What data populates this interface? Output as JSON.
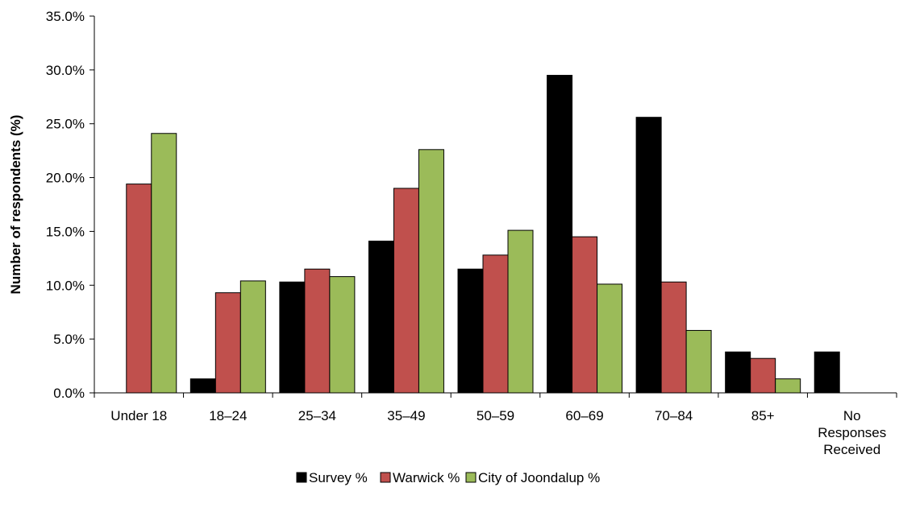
{
  "chart_data": {
    "type": "bar",
    "title": "",
    "xlabel": "",
    "ylabel": "Number of respondents (%)",
    "ylim": [
      0,
      35
    ],
    "y_tick_labels": [
      "0.0%",
      "5.0%",
      "10.0%",
      "15.0%",
      "20.0%",
      "25.0%",
      "30.0%",
      "35.0%"
    ],
    "grid": false,
    "legend_position": "bottom",
    "categories": [
      [
        "Under 18"
      ],
      [
        "18–24"
      ],
      [
        "25–34"
      ],
      [
        "35–49"
      ],
      [
        "50–59"
      ],
      [
        "60–69"
      ],
      [
        "70–84"
      ],
      [
        "85+"
      ],
      [
        "No",
        "Responses",
        "Received"
      ]
    ],
    "series": [
      {
        "name": "Survey %",
        "color": "#000000",
        "values": [
          0,
          1.3,
          10.3,
          14.1,
          11.5,
          29.5,
          25.6,
          3.8,
          3.8
        ]
      },
      {
        "name": "Warwick %",
        "color": "#c0504d",
        "values": [
          19.4,
          9.3,
          11.5,
          19.0,
          12.8,
          14.5,
          10.3,
          3.2,
          0
        ]
      },
      {
        "name": "City of Joondalup %",
        "color": "#9bbb59",
        "values": [
          24.1,
          10.4,
          10.8,
          22.6,
          15.1,
          10.1,
          5.8,
          1.3,
          0
        ]
      }
    ]
  }
}
